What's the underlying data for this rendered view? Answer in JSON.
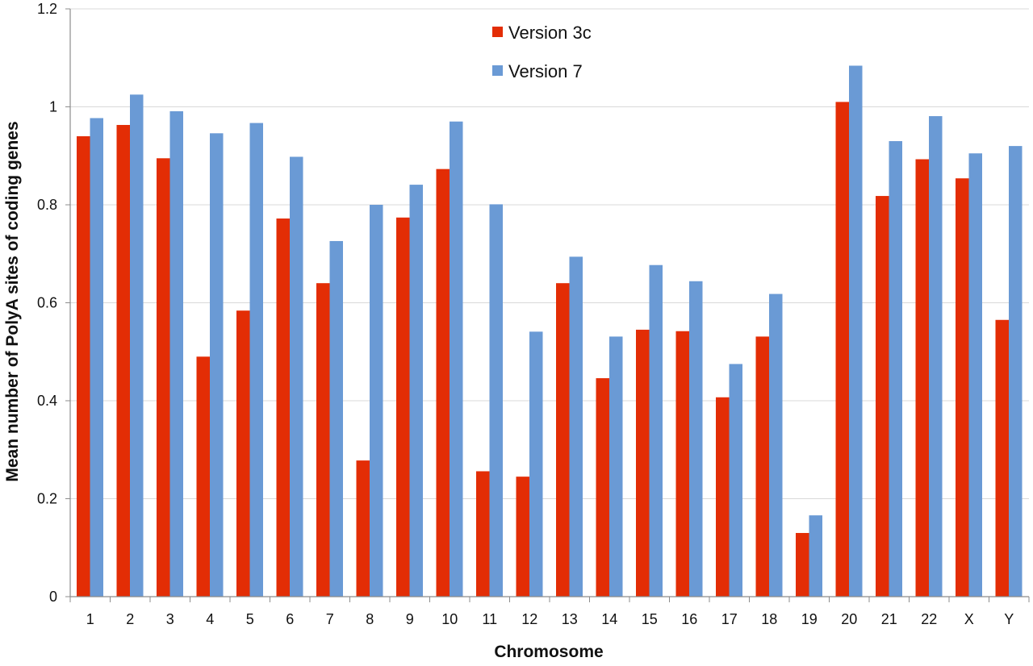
{
  "chart_data": {
    "type": "bar",
    "title": "",
    "xlabel": "Chromosome",
    "ylabel": "Mean number of PolyA sites of coding genes",
    "ylim": [
      0,
      1.2
    ],
    "yticks": [
      "0",
      "0.2",
      "0.4",
      "0.6",
      "0.8",
      "1",
      "1.2"
    ],
    "grid": true,
    "legend_position": "top-center",
    "categories": [
      "1",
      "2",
      "3",
      "4",
      "5",
      "6",
      "7",
      "8",
      "9",
      "10",
      "11",
      "12",
      "13",
      "14",
      "15",
      "16",
      "17",
      "18",
      "19",
      "20",
      "21",
      "22",
      "X",
      "Y"
    ],
    "series": [
      {
        "name": "Version 3c",
        "color": "#e32d05",
        "values": [
          0.94,
          0.963,
          0.895,
          0.49,
          0.584,
          0.772,
          0.64,
          0.278,
          0.774,
          0.873,
          0.256,
          0.245,
          0.64,
          0.446,
          0.545,
          0.542,
          0.407,
          0.531,
          0.13,
          1.01,
          0.818,
          0.893,
          0.854,
          0.565
        ]
      },
      {
        "name": "Version 7",
        "color": "#6a9ad5",
        "values": [
          0.977,
          1.025,
          0.991,
          0.946,
          0.967,
          0.898,
          0.726,
          0.8,
          0.841,
          0.97,
          0.801,
          0.541,
          0.694,
          0.531,
          0.677,
          0.644,
          0.475,
          0.618,
          0.166,
          1.084,
          0.93,
          0.981,
          0.905,
          0.92
        ]
      }
    ]
  }
}
